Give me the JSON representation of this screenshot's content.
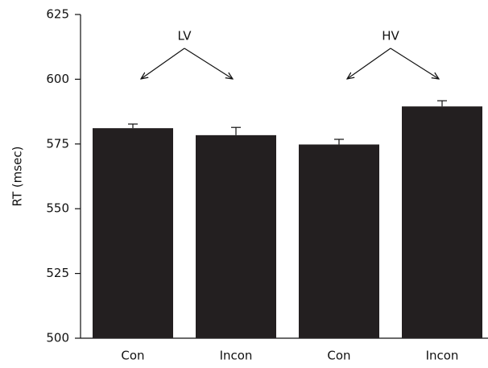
{
  "chart_data": {
    "type": "bar",
    "y_label": "RT (msec)",
    "categories": [
      "Con",
      "Incon",
      "Con",
      "Incon"
    ],
    "values": [
      581.1,
      578.4,
      574.8,
      589.5
    ],
    "errors": [
      1.6,
      3.0,
      2.0,
      2.2
    ],
    "group_labels": [
      "LV",
      "HV"
    ],
    "color": "#231f20",
    "ylim": [
      500,
      625
    ],
    "yticks": [
      500,
      525,
      550,
      575,
      600,
      625
    ],
    "grid": false
  }
}
